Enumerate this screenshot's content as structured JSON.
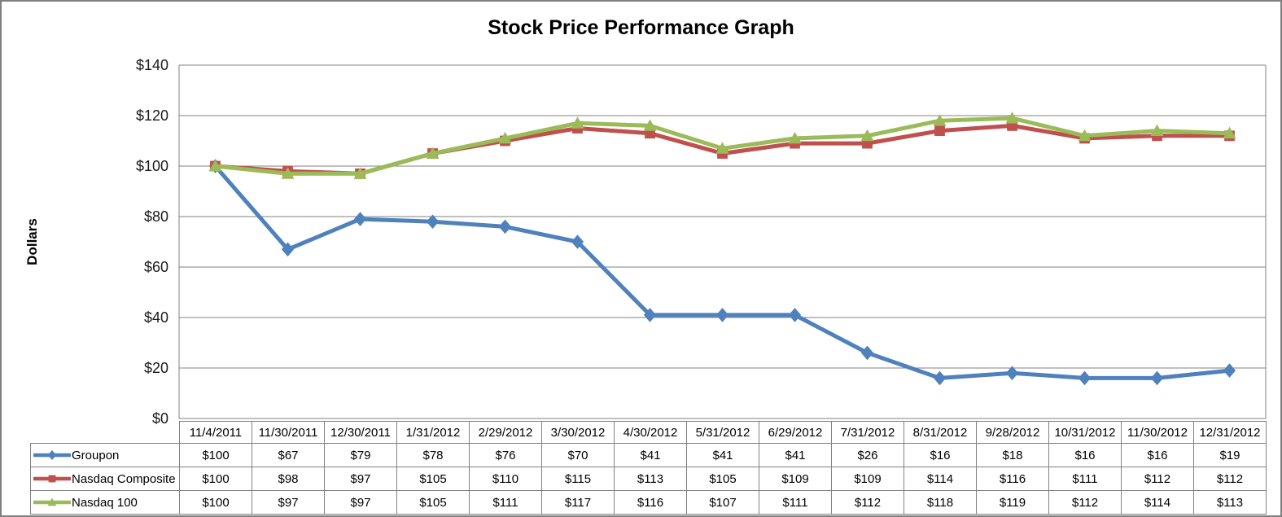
{
  "title": "Stock Price Performance Graph",
  "chart_data": {
    "type": "line",
    "title": "Stock Price Performance Graph",
    "xlabel": "",
    "ylabel": "Dollars",
    "ylim": [
      0,
      140
    ],
    "yticks": [
      0,
      20,
      40,
      60,
      80,
      100,
      120,
      140
    ],
    "ytick_labels": [
      "$0",
      "$20",
      "$40",
      "$60",
      "$80",
      "$100",
      "$120",
      "$140"
    ],
    "grid": true,
    "legend_position": "table-left",
    "value_prefix": "$",
    "categories": [
      "11/4/2011",
      "11/30/2011",
      "12/30/2011",
      "1/31/2012",
      "2/29/2012",
      "3/30/2012",
      "4/30/2012",
      "5/31/2012",
      "6/29/2012",
      "7/31/2012",
      "8/31/2012",
      "9/28/2012",
      "10/31/2012",
      "11/30/2012",
      "12/31/2012"
    ],
    "series": [
      {
        "name": "Groupon",
        "marker": "diamond",
        "color": "#4F81BD",
        "values": [
          100,
          67,
          79,
          78,
          76,
          70,
          41,
          41,
          41,
          26,
          16,
          18,
          16,
          16,
          19
        ]
      },
      {
        "name": "Nasdaq Composite",
        "marker": "square",
        "color": "#C0504D",
        "values": [
          100,
          98,
          97,
          105,
          110,
          115,
          113,
          105,
          109,
          109,
          114,
          116,
          111,
          112,
          112
        ]
      },
      {
        "name": "Nasdaq 100",
        "marker": "triangle",
        "color": "#9BBB59",
        "values": [
          100,
          97,
          97,
          105,
          111,
          117,
          116,
          107,
          111,
          112,
          118,
          119,
          112,
          114,
          113
        ]
      }
    ]
  },
  "colors": {
    "gridline": "#808080",
    "axis": "#808080",
    "table_border": "#808080",
    "frame_border": "#7F7F7F",
    "text": "#000000"
  }
}
